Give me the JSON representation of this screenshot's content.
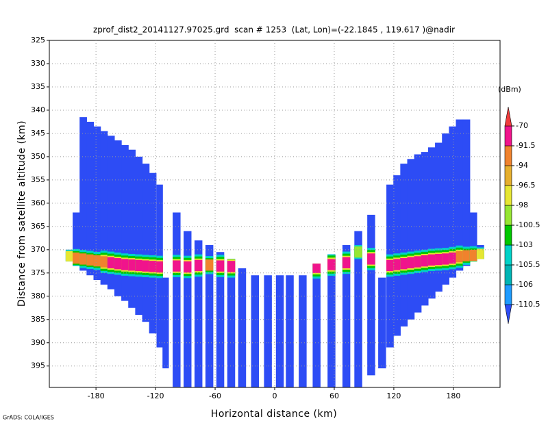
{
  "chart_data": {
    "type": "swath",
    "title": "zprof_dist2_20141127.97025.grd  scan # 1253  (Lat, Lon)=(-22.1845 , 119.617 )@nadir",
    "x_label": "Horizontal distance (km)",
    "y_label": "Distance from satellite altitude (km)",
    "footer": "GrADS: COLA/IGES",
    "xlim": [
      -227,
      227
    ],
    "ylim": [
      325,
      399.6
    ],
    "y_inverted": true,
    "xticks": [
      -180,
      -120,
      -60,
      0,
      60,
      120,
      180
    ],
    "yticks": [
      325,
      330,
      335,
      340,
      345,
      350,
      355,
      360,
      365,
      370,
      375,
      380,
      385,
      390,
      395
    ],
    "grid": true,
    "colorbar": {
      "unit": "(dBm)",
      "levels": [
        -110.5,
        -106,
        -105.5,
        -103,
        -100.5,
        -98,
        -96.5,
        -94,
        -91.5,
        -70
      ],
      "colors": [
        "#2d4cf5",
        "#1e9bff",
        "#00b4b4",
        "#00d2c8",
        "#00c800",
        "#96e632",
        "#e6e632",
        "#e6af2d",
        "#f0822d",
        "#f0148c",
        "#f03c3c"
      ]
    },
    "columns": [
      {
        "x": -207,
        "top": 370,
        "bottom": 372.5,
        "band": 371.5,
        "peak": -97
      },
      {
        "x": -200,
        "top": 362,
        "bottom": 373.5,
        "band": 371.8,
        "peak": -94
      },
      {
        "x": -193,
        "top": 341.5,
        "bottom": 374.5,
        "band": 372,
        "peak": -93
      },
      {
        "x": -186,
        "top": 342.5,
        "bottom": 375.5,
        "band": 372.2,
        "peak": -93
      },
      {
        "x": -179,
        "top": 343.5,
        "bottom": 376.5,
        "band": 372.4,
        "peak": -93
      },
      {
        "x": -172,
        "top": 344.5,
        "bottom": 377.5,
        "band": 372.6,
        "peak": -92.5
      },
      {
        "x": -165,
        "top": 345.5,
        "bottom": 378.5,
        "band": 372.8,
        "peak": -85
      },
      {
        "x": -158,
        "top": 346.5,
        "bottom": 380,
        "band": 373,
        "peak": -85
      },
      {
        "x": -151,
        "top": 347.5,
        "bottom": 381,
        "band": 373.2,
        "peak": -80
      },
      {
        "x": -144,
        "top": 348.5,
        "bottom": 382.5,
        "band": 373.3,
        "peak": -80
      },
      {
        "x": -137,
        "top": 350,
        "bottom": 384,
        "band": 373.4,
        "peak": -80
      },
      {
        "x": -130,
        "top": 351.5,
        "bottom": 385.5,
        "band": 373.5,
        "peak": -80
      },
      {
        "x": -123,
        "top": 353.5,
        "bottom": 388,
        "band": 373.6,
        "peak": -80
      },
      {
        "x": -116,
        "top": 356,
        "bottom": 391,
        "band": 373.7,
        "peak": -85
      },
      {
        "x": -110,
        "top": 376,
        "bottom": 395.5,
        "band": null,
        "peak": null
      },
      {
        "x": -99,
        "top": 362,
        "bottom": 399.5,
        "band": 373.5,
        "peak": -85
      },
      {
        "x": -88,
        "top": 366,
        "bottom": 399.6,
        "band": 373.7,
        "peak": -85
      },
      {
        "x": -77,
        "top": 368,
        "bottom": 399.6,
        "band": 373.4,
        "peak": -85
      },
      {
        "x": -66,
        "top": 369,
        "bottom": 399.6,
        "band": 373.3,
        "peak": -94
      },
      {
        "x": -55,
        "top": 370.5,
        "bottom": 399.6,
        "band": 373.5,
        "peak": -85
      },
      {
        "x": -44,
        "top": 372,
        "bottom": 399.6,
        "band": 373.6,
        "peak": -85
      },
      {
        "x": -33,
        "top": 374,
        "bottom": 399.6,
        "band": null,
        "peak": null
      },
      {
        "x": -20,
        "top": 375.5,
        "bottom": 399.6,
        "band": null,
        "peak": null
      },
      {
        "x": -7,
        "top": 375.5,
        "bottom": 399.6,
        "band": null,
        "peak": null
      },
      {
        "x": 5,
        "top": 375.5,
        "bottom": 399.6,
        "band": null,
        "peak": null
      },
      {
        "x": 15,
        "top": 375.5,
        "bottom": 399.6,
        "band": null,
        "peak": null
      },
      {
        "x": 28,
        "top": 375.5,
        "bottom": 399.6,
        "band": null,
        "peak": null
      },
      {
        "x": 42,
        "top": 373,
        "bottom": 399.6,
        "band": 373.8,
        "peak": -85
      },
      {
        "x": 57,
        "top": 371,
        "bottom": 399.6,
        "band": 373.2,
        "peak": -85
      },
      {
        "x": 72,
        "top": 369,
        "bottom": 399.6,
        "band": 372.8,
        "peak": -85
      },
      {
        "x": 84,
        "top": 366,
        "bottom": 399.6,
        "band": 370.5,
        "peak": -100
      },
      {
        "x": 97,
        "top": 362.5,
        "bottom": 397,
        "band": 372,
        "peak": -85
      },
      {
        "x": 108,
        "top": 376,
        "bottom": 395.5,
        "band": null,
        "peak": null
      },
      {
        "x": 116,
        "top": 356,
        "bottom": 391,
        "band": 373.4,
        "peak": -85
      },
      {
        "x": 123,
        "top": 354,
        "bottom": 388.5,
        "band": 373.2,
        "peak": -80
      },
      {
        "x": 130,
        "top": 351.5,
        "bottom": 386.5,
        "band": 373,
        "peak": -80
      },
      {
        "x": 137,
        "top": 350.5,
        "bottom": 385,
        "band": 372.8,
        "peak": -80
      },
      {
        "x": 144,
        "top": 349.5,
        "bottom": 383.5,
        "band": 372.6,
        "peak": -80
      },
      {
        "x": 151,
        "top": 349,
        "bottom": 382,
        "band": 372.4,
        "peak": -80
      },
      {
        "x": 158,
        "top": 348,
        "bottom": 380.5,
        "band": 372.2,
        "peak": -80
      },
      {
        "x": 165,
        "top": 347,
        "bottom": 379,
        "band": 372.1,
        "peak": -80
      },
      {
        "x": 172,
        "top": 345,
        "bottom": 377.5,
        "band": 372,
        "peak": -80
      },
      {
        "x": 179,
        "top": 343.5,
        "bottom": 376,
        "band": 371.8,
        "peak": -85
      },
      {
        "x": 186,
        "top": 342,
        "bottom": 374.5,
        "band": 371.5,
        "peak": -92.5
      },
      {
        "x": 193,
        "top": 342,
        "bottom": 373.5,
        "band": 371.3,
        "peak": -93
      },
      {
        "x": 200,
        "top": 362,
        "bottom": 372.5,
        "band": 371.2,
        "peak": -94
      },
      {
        "x": 207,
        "top": 369,
        "bottom": 372,
        "band": 371,
        "peak": -97
      }
    ]
  }
}
